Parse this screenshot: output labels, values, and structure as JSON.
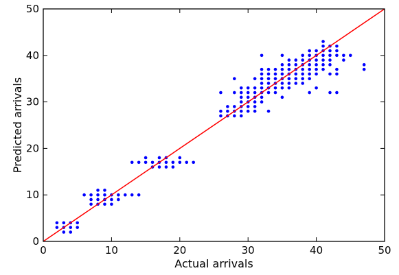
{
  "chart_data": {
    "type": "scatter",
    "xlabel": "Actual arrivals",
    "ylabel": "Predicted arrivals",
    "xlim": [
      0,
      50
    ],
    "ylim": [
      0,
      50
    ],
    "xticks": [
      "0",
      "10",
      "20",
      "30",
      "40",
      "50"
    ],
    "yticks": [
      "0",
      "10",
      "20",
      "30",
      "40",
      "50"
    ],
    "grid": false,
    "reference_line": {
      "from": [
        0,
        0
      ],
      "to": [
        50,
        50
      ],
      "color": "#ff0000"
    },
    "marker_color": "#0000ff",
    "points": [
      [
        2,
        3
      ],
      [
        2,
        4
      ],
      [
        3,
        2
      ],
      [
        3,
        3
      ],
      [
        3,
        4
      ],
      [
        4,
        2
      ],
      [
        4,
        3
      ],
      [
        4,
        4
      ],
      [
        5,
        3
      ],
      [
        5,
        4
      ],
      [
        6,
        10
      ],
      [
        7,
        8
      ],
      [
        7,
        9
      ],
      [
        7,
        10
      ],
      [
        8,
        8
      ],
      [
        8,
        9
      ],
      [
        8,
        10
      ],
      [
        8,
        11
      ],
      [
        9,
        8
      ],
      [
        9,
        9
      ],
      [
        9,
        10
      ],
      [
        9,
        11
      ],
      [
        10,
        8
      ],
      [
        10,
        9
      ],
      [
        10,
        10
      ],
      [
        11,
        9
      ],
      [
        11,
        10
      ],
      [
        12,
        10
      ],
      [
        13,
        10
      ],
      [
        14,
        10
      ],
      [
        13,
        17
      ],
      [
        14,
        17
      ],
      [
        15,
        17
      ],
      [
        15,
        18
      ],
      [
        16,
        16
      ],
      [
        16,
        17
      ],
      [
        17,
        16
      ],
      [
        17,
        17
      ],
      [
        17,
        18
      ],
      [
        18,
        16
      ],
      [
        18,
        17
      ],
      [
        18,
        18
      ],
      [
        19,
        16
      ],
      [
        19,
        17
      ],
      [
        20,
        17
      ],
      [
        20,
        18
      ],
      [
        21,
        17
      ],
      [
        22,
        17
      ],
      [
        26,
        27
      ],
      [
        26,
        28
      ],
      [
        26,
        32
      ],
      [
        27,
        27
      ],
      [
        27,
        28
      ],
      [
        27,
        29
      ],
      [
        28,
        27
      ],
      [
        28,
        28
      ],
      [
        28,
        29
      ],
      [
        28,
        32
      ],
      [
        28,
        35
      ],
      [
        29,
        27
      ],
      [
        29,
        28
      ],
      [
        29,
        29
      ],
      [
        29,
        30
      ],
      [
        29,
        31
      ],
      [
        29,
        32
      ],
      [
        29,
        33
      ],
      [
        30,
        28
      ],
      [
        30,
        29
      ],
      [
        30,
        30
      ],
      [
        30,
        31
      ],
      [
        30,
        32
      ],
      [
        30,
        33
      ],
      [
        31,
        28
      ],
      [
        31,
        29
      ],
      [
        31,
        30
      ],
      [
        31,
        31
      ],
      [
        31,
        32
      ],
      [
        31,
        33
      ],
      [
        31,
        35
      ],
      [
        32,
        30
      ],
      [
        32,
        31
      ],
      [
        32,
        32
      ],
      [
        32,
        33
      ],
      [
        32,
        34
      ],
      [
        32,
        35
      ],
      [
        32,
        36
      ],
      [
        32,
        37
      ],
      [
        32,
        40
      ],
      [
        33,
        28
      ],
      [
        33,
        32
      ],
      [
        33,
        33
      ],
      [
        33,
        34
      ],
      [
        33,
        35
      ],
      [
        33,
        36
      ],
      [
        33,
        37
      ],
      [
        34,
        32
      ],
      [
        34,
        33
      ],
      [
        34,
        34
      ],
      [
        34,
        35
      ],
      [
        34,
        36
      ],
      [
        34,
        37
      ],
      [
        35,
        31
      ],
      [
        35,
        33
      ],
      [
        35,
        34
      ],
      [
        35,
        35
      ],
      [
        35,
        36
      ],
      [
        35,
        37
      ],
      [
        35,
        38
      ],
      [
        35,
        40
      ],
      [
        36,
        33
      ],
      [
        36,
        34
      ],
      [
        36,
        35
      ],
      [
        36,
        36
      ],
      [
        36,
        37
      ],
      [
        36,
        38
      ],
      [
        36,
        39
      ],
      [
        37,
        34
      ],
      [
        37,
        35
      ],
      [
        37,
        36
      ],
      [
        37,
        37
      ],
      [
        37,
        38
      ],
      [
        37,
        39
      ],
      [
        38,
        34
      ],
      [
        38,
        35
      ],
      [
        38,
        36
      ],
      [
        38,
        37
      ],
      [
        38,
        38
      ],
      [
        38,
        39
      ],
      [
        38,
        40
      ],
      [
        39,
        32
      ],
      [
        39,
        35
      ],
      [
        39,
        36
      ],
      [
        39,
        37
      ],
      [
        39,
        38
      ],
      [
        39,
        39
      ],
      [
        39,
        40
      ],
      [
        39,
        41
      ],
      [
        40,
        33
      ],
      [
        40,
        36
      ],
      [
        40,
        37
      ],
      [
        40,
        38
      ],
      [
        40,
        39
      ],
      [
        40,
        40
      ],
      [
        40,
        41
      ],
      [
        41,
        37
      ],
      [
        41,
        38
      ],
      [
        41,
        39
      ],
      [
        41,
        40
      ],
      [
        41,
        41
      ],
      [
        41,
        42
      ],
      [
        41,
        43
      ],
      [
        42,
        32
      ],
      [
        42,
        36
      ],
      [
        42,
        38
      ],
      [
        42,
        39
      ],
      [
        42,
        40
      ],
      [
        42,
        41
      ],
      [
        42,
        42
      ],
      [
        43,
        32
      ],
      [
        43,
        36
      ],
      [
        43,
        37
      ],
      [
        43,
        40
      ],
      [
        43,
        41
      ],
      [
        43,
        42
      ],
      [
        44,
        39
      ],
      [
        44,
        40
      ],
      [
        45,
        40
      ],
      [
        47,
        37
      ],
      [
        47,
        38
      ]
    ]
  }
}
